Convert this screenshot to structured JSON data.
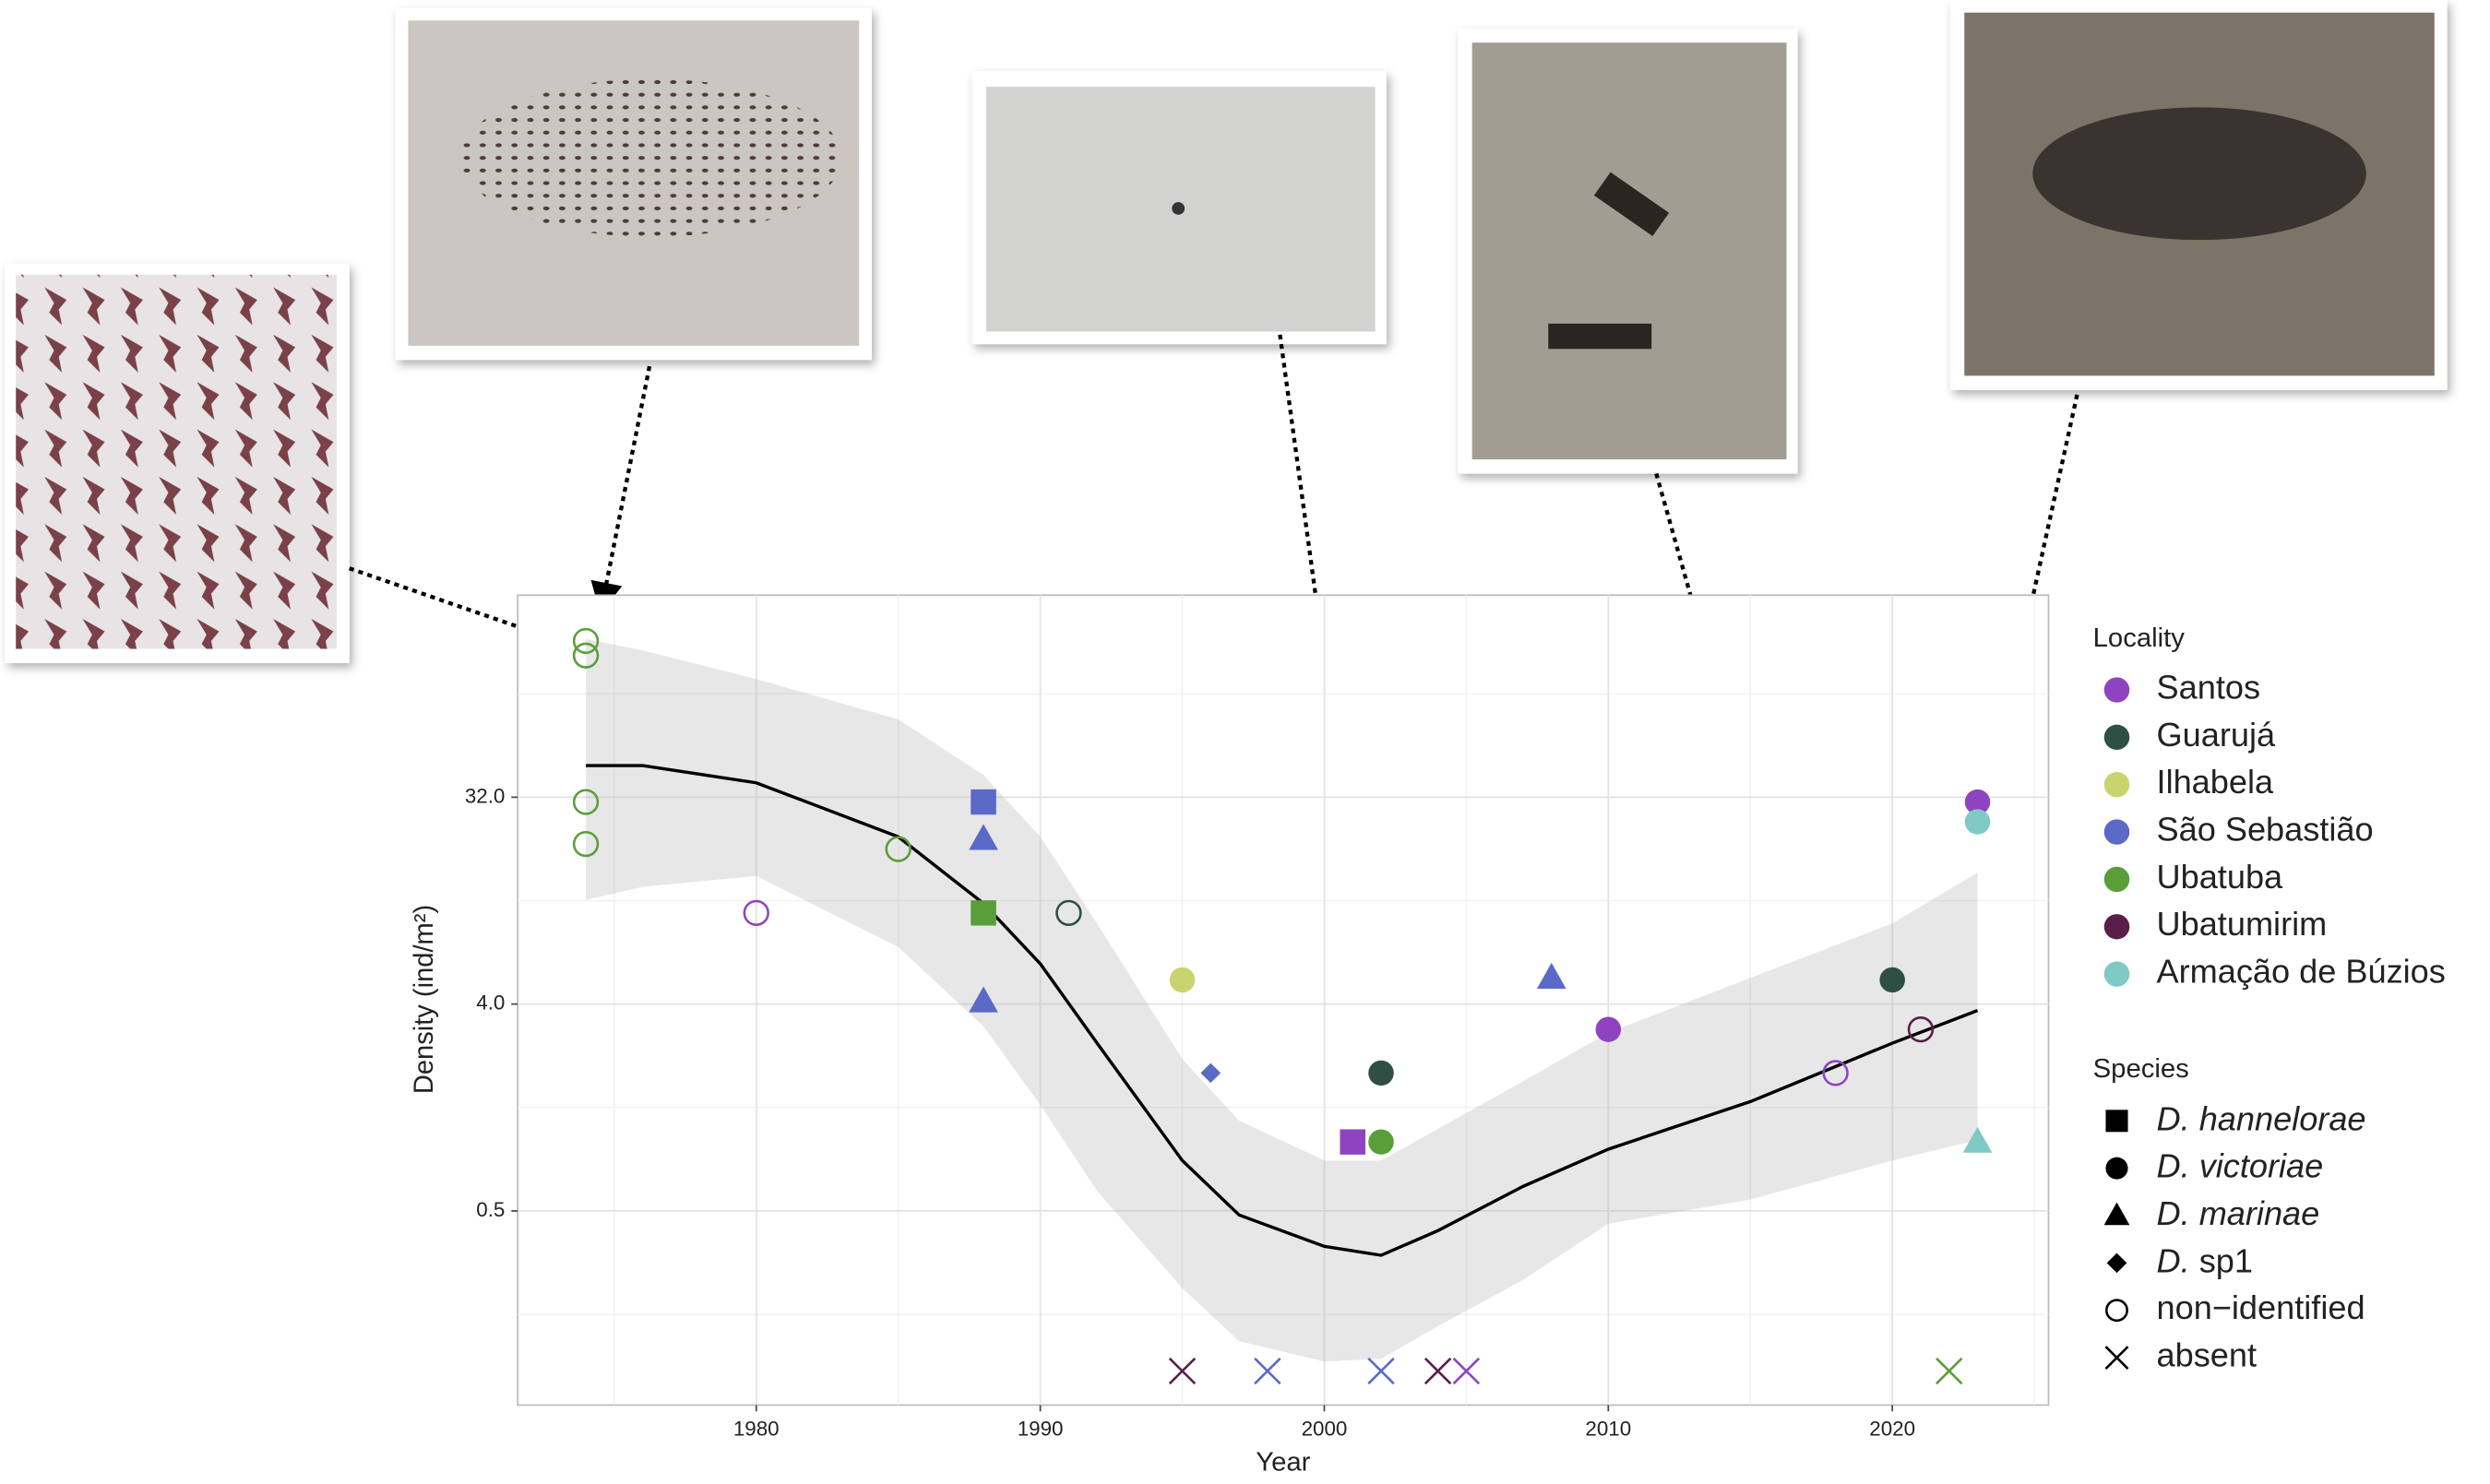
{
  "chart_data": {
    "type": "scatter",
    "x_label": "Year",
    "y_label": "Density (ind/m²)",
    "xlim": [
      1971.6,
      2025.5
    ],
    "xticks": [
      1980,
      1990,
      2000,
      2010,
      2020
    ],
    "ylim": [
      0.071,
      244
    ],
    "log_scale": true,
    "yticks": [
      0.5,
      {
        "value": 4,
        "label": "4.0"
      },
      {
        "value": 32,
        "label": "32.0"
      }
    ],
    "grid": true,
    "legend_title": "Locality",
    "species_title": "Species",
    "species_legend": [
      {
        "name": "D. hannelorae",
        "shape": "square"
      },
      {
        "name": "D. victoriae",
        "shape": "circle"
      },
      {
        "name": "D. marinae",
        "shape": "triangle"
      },
      {
        "name": "D. sp1",
        "shape": "diamond"
      },
      {
        "name": "non−identified",
        "shape": "open"
      },
      {
        "name": "absent",
        "shape": "x"
      }
    ],
    "series": [
      {
        "name": "Santos",
        "color": "#8e44c0",
        "x": [
          1980,
          2001,
          2005,
          2010,
          2018,
          2023
        ],
        "values": [
          10,
          1.0,
          0.1,
          3.1,
          2.0,
          30.5
        ],
        "shape": [
          "open",
          "square",
          "x",
          "circle",
          "open",
          "circle"
        ]
      },
      {
        "name": "Guarujá",
        "color": "#2f4f44",
        "x": [
          1991,
          2002,
          2020
        ],
        "values": [
          10,
          2.0,
          5.1
        ],
        "shape": [
          "open",
          "circle",
          "circle"
        ]
      },
      {
        "name": "Ilhabela",
        "color": "#c9d46e",
        "x": [
          1995
        ],
        "values": [
          5.1
        ],
        "shape": [
          "circle"
        ]
      },
      {
        "name": "São Sebastião",
        "color": "#5b6ac6",
        "x": [
          1988,
          1988,
          1988,
          1996,
          1998,
          2002,
          2008
        ],
        "values": [
          30.5,
          21,
          4.1,
          2.0,
          0.1,
          0.1,
          5.2
        ],
        "shape": [
          "square",
          "triangle",
          "triangle",
          "diamond",
          "x",
          "x",
          "triangle"
        ]
      },
      {
        "name": "Ubatuba",
        "color": "#5a9e3a",
        "x": [
          1974,
          1974,
          1974,
          1974,
          1985,
          1988,
          2002,
          2022
        ],
        "values": [
          154,
          133,
          30.5,
          20,
          19,
          10,
          1.0,
          0.1
        ],
        "shape": [
          "open",
          "open",
          "open",
          "open",
          "open",
          "square",
          "circle",
          "x"
        ]
      },
      {
        "name": "Ubatumirim",
        "color": "#5a1e4a",
        "x": [
          1995,
          2004,
          2021
        ],
        "values": [
          0.1,
          0.1,
          3.1
        ],
        "shape": [
          "x",
          "x",
          "open"
        ]
      },
      {
        "name": "Armação de Búzios",
        "color": "#7fcac4",
        "x": [
          2023,
          2023
        ],
        "values": [
          25,
          1.0
        ],
        "shape": [
          "circle",
          "triangle"
        ]
      }
    ],
    "smooth": {
      "color": "#000000",
      "x": [
        1974,
        1976,
        1980,
        1985,
        1988,
        1990,
        1992,
        1995,
        1997,
        2000,
        2002,
        2004,
        2007,
        2010,
        2015,
        2020,
        2023
      ],
      "values": [
        44,
        44,
        37,
        21.5,
        11,
        6,
        2.7,
        0.83,
        0.48,
        0.35,
        0.32,
        0.41,
        0.64,
        0.93,
        1.5,
        2.7,
        3.75
      ],
      "upper": [
        157,
        140,
        105,
        70,
        40,
        21.5,
        9,
        2.3,
        1.24,
        0.83,
        0.83,
        1.14,
        1.84,
        3.0,
        5.2,
        9,
        15
      ],
      "lower": [
        11.4,
        13,
        14.5,
        7.1,
        3.2,
        1.45,
        0.61,
        0.23,
        0.135,
        0.11,
        0.113,
        0.157,
        0.25,
        0.44,
        0.56,
        0.83,
        1.02
      ]
    }
  }
}
